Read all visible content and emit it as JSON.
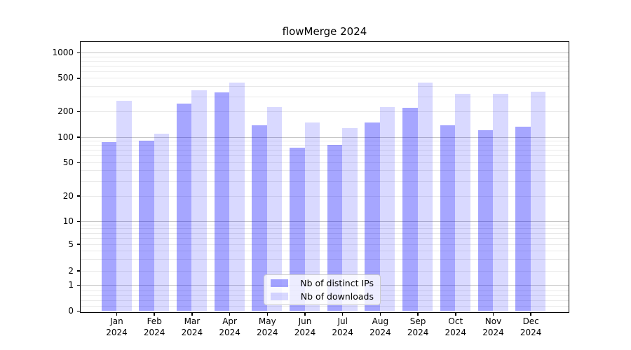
{
  "chart_data": {
    "type": "bar",
    "title": "flowMerge 2024",
    "categories": [
      {
        "month": "Jan",
        "year": "2024"
      },
      {
        "month": "Feb",
        "year": "2024"
      },
      {
        "month": "Mar",
        "year": "2024"
      },
      {
        "month": "Apr",
        "year": "2024"
      },
      {
        "month": "May",
        "year": "2024"
      },
      {
        "month": "Jun",
        "year": "2024"
      },
      {
        "month": "Jul",
        "year": "2024"
      },
      {
        "month": "Aug",
        "year": "2024"
      },
      {
        "month": "Sep",
        "year": "2024"
      },
      {
        "month": "Oct",
        "year": "2024"
      },
      {
        "month": "Nov",
        "year": "2024"
      },
      {
        "month": "Dec",
        "year": "2024"
      }
    ],
    "series": [
      {
        "name": "Nb of distinct IPs",
        "slug": "distinct-ips",
        "color": "rgba(0,0,255,0.35)",
        "values": [
          86,
          90,
          250,
          335,
          136,
          75,
          81,
          147,
          223,
          136,
          119,
          131
        ]
      },
      {
        "name": "Nb of downloads",
        "slug": "downloads",
        "color": "rgba(0,0,255,0.15)",
        "values": [
          265,
          108,
          353,
          436,
          227,
          147,
          126,
          227,
          436,
          321,
          321,
          340
        ]
      }
    ],
    "y_axis": {
      "scale": "symlog",
      "ticks": [
        {
          "label": "1000",
          "value": 1000
        },
        {
          "label": "500",
          "value": 500
        },
        {
          "label": "200",
          "value": 200
        },
        {
          "label": "100",
          "value": 100
        },
        {
          "label": "50",
          "value": 50
        },
        {
          "label": "20",
          "value": 20
        },
        {
          "label": "10",
          "value": 10
        },
        {
          "label": "5",
          "value": 5
        },
        {
          "label": "2",
          "value": 2
        },
        {
          "label": "1",
          "value": 1
        },
        {
          "label": "0",
          "value": 0
        }
      ],
      "major_gridlines": [
        1,
        10,
        100,
        1000
      ],
      "minor_gridlines": [
        0.2,
        0.4,
        0.6,
        0.8,
        2,
        3,
        4,
        5,
        6,
        7,
        8,
        9,
        20,
        30,
        40,
        50,
        60,
        70,
        80,
        90,
        200,
        300,
        400,
        500,
        600,
        700,
        800,
        900
      ]
    },
    "legend_position": "lower center",
    "grid": true
  },
  "colors": {
    "major_grid": "#c6c6c6",
    "minor_grid": "#e9e9e9",
    "spine": "#000000",
    "legend_border": "#cccccc"
  }
}
